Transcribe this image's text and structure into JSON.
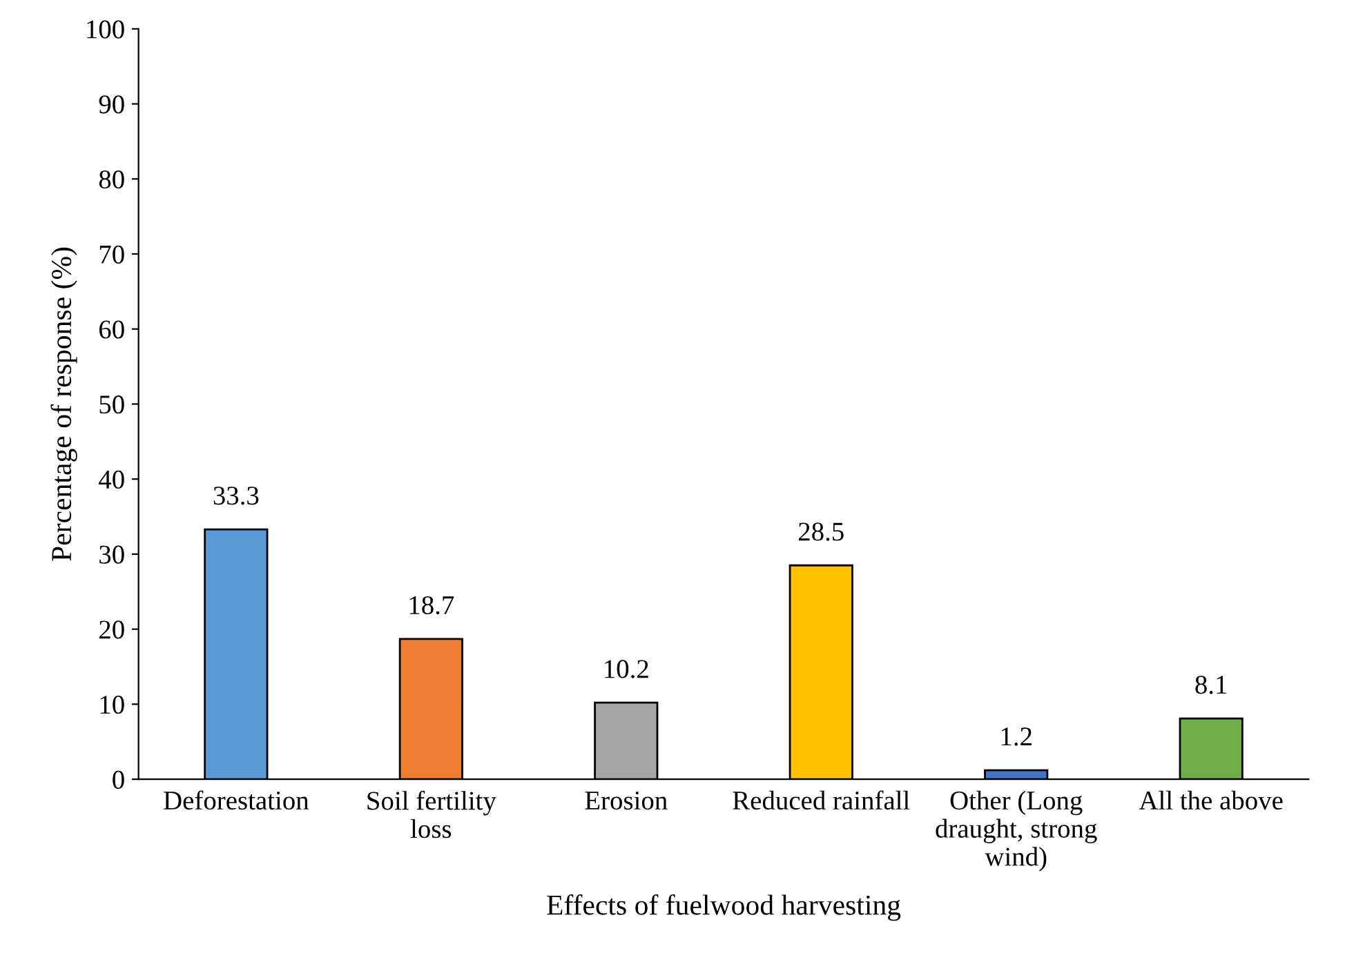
{
  "chart_data": {
    "type": "bar",
    "xlabel": "Effects of fuelwood harvesting",
    "ylabel": "Percentage of response (%)",
    "categories": [
      "Deforestation",
      "Soil fertility loss",
      "Erosion",
      "Reduced rainfall",
      "Other (Long draught, strong wind)",
      "All the above"
    ],
    "values": [
      33.3,
      18.7,
      10.2,
      28.5,
      1.2,
      8.1
    ],
    "colors": [
      "#5b9bd5",
      "#ed7d31",
      "#a5a5a5",
      "#ffc000",
      "#4472c4",
      "#70ad47"
    ],
    "ylim": [
      0,
      100
    ],
    "yticks": [
      0,
      10,
      20,
      30,
      40,
      50,
      60,
      70,
      80,
      90,
      100
    ],
    "data_labels": true,
    "grid": false,
    "legend": false
  }
}
